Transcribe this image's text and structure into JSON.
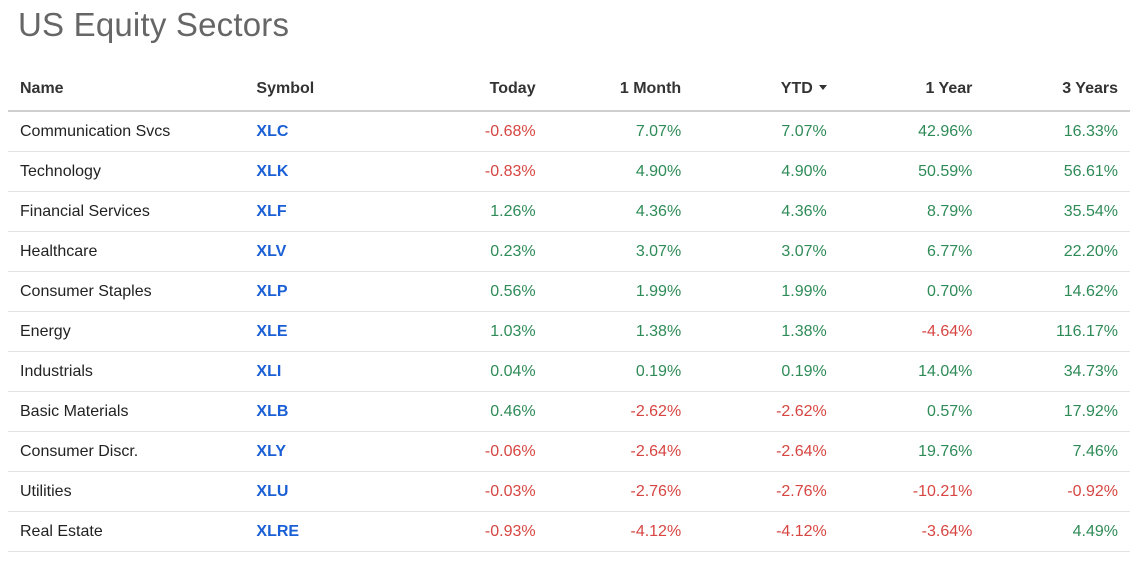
{
  "title": "US Equity Sectors",
  "colors": {
    "positive": "#2e8b57",
    "negative": "#d64541",
    "link": "#1a5fd6"
  },
  "table": {
    "headers": {
      "name": "Name",
      "symbol": "Symbol",
      "today": "Today",
      "month": "1 Month",
      "ytd": "YTD",
      "year": "1 Year",
      "three_years": "3 Years"
    },
    "sort": {
      "column": "ytd",
      "direction": "desc",
      "icon": "caret-down-icon"
    },
    "rows": [
      {
        "name": "Communication Svcs",
        "symbol": "XLC",
        "today": "-0.68%",
        "month": "7.07%",
        "ytd": "7.07%",
        "year": "42.96%",
        "three_years": "16.33%"
      },
      {
        "name": "Technology",
        "symbol": "XLK",
        "today": "-0.83%",
        "month": "4.90%",
        "ytd": "4.90%",
        "year": "50.59%",
        "three_years": "56.61%"
      },
      {
        "name": "Financial Services",
        "symbol": "XLF",
        "today": "1.26%",
        "month": "4.36%",
        "ytd": "4.36%",
        "year": "8.79%",
        "three_years": "35.54%"
      },
      {
        "name": "Healthcare",
        "symbol": "XLV",
        "today": "0.23%",
        "month": "3.07%",
        "ytd": "3.07%",
        "year": "6.77%",
        "three_years": "22.20%"
      },
      {
        "name": "Consumer Staples",
        "symbol": "XLP",
        "today": "0.56%",
        "month": "1.99%",
        "ytd": "1.99%",
        "year": "0.70%",
        "three_years": "14.62%"
      },
      {
        "name": "Energy",
        "symbol": "XLE",
        "today": "1.03%",
        "month": "1.38%",
        "ytd": "1.38%",
        "year": "-4.64%",
        "three_years": "116.17%"
      },
      {
        "name": "Industrials",
        "symbol": "XLI",
        "today": "0.04%",
        "month": "0.19%",
        "ytd": "0.19%",
        "year": "14.04%",
        "three_years": "34.73%"
      },
      {
        "name": "Basic Materials",
        "symbol": "XLB",
        "today": "0.46%",
        "month": "-2.62%",
        "ytd": "-2.62%",
        "year": "0.57%",
        "three_years": "17.92%"
      },
      {
        "name": "Consumer Discr.",
        "symbol": "XLY",
        "today": "-0.06%",
        "month": "-2.64%",
        "ytd": "-2.64%",
        "year": "19.76%",
        "three_years": "7.46%"
      },
      {
        "name": "Utilities",
        "symbol": "XLU",
        "today": "-0.03%",
        "month": "-2.76%",
        "ytd": "-2.76%",
        "year": "-10.21%",
        "three_years": "-0.92%"
      },
      {
        "name": "Real Estate",
        "symbol": "XLRE",
        "today": "-0.93%",
        "month": "-4.12%",
        "ytd": "-4.12%",
        "year": "-3.64%",
        "three_years": "4.49%"
      }
    ]
  }
}
